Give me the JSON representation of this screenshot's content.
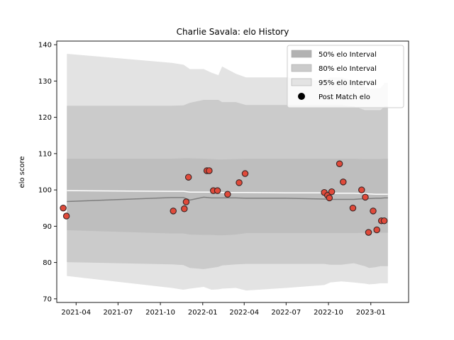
{
  "chart_data": {
    "type": "scatter",
    "title": "Charlie Savala: elo History",
    "xlabel": "",
    "ylabel": "elo score",
    "xlim": [
      "2021-02-18",
      "2023-03-24"
    ],
    "ylim": [
      69,
      141
    ],
    "x_ticks": [
      "2021-04-01",
      "2021-07-01",
      "2021-10-01",
      "2022-01-01",
      "2022-04-01",
      "2022-07-01",
      "2022-10-01",
      "2023-01-01"
    ],
    "x_tick_labels": [
      "2021-04",
      "2021-07",
      "2021-10",
      "2022-01",
      "2022-04",
      "2022-07",
      "2022-10",
      "2023-01"
    ],
    "y_ticks": [
      70,
      80,
      90,
      100,
      110,
      120,
      130,
      140
    ],
    "grid": false,
    "legend_position": "top-right",
    "legend": [
      {
        "label": "50% elo Interval",
        "kind": "patch",
        "color": "#b2b2b2"
      },
      {
        "label": "80% elo Interval",
        "kind": "patch",
        "color": "#cbcbcb"
      },
      {
        "label": "95% elo Interval",
        "kind": "patch",
        "color": "#e3e3e3"
      },
      {
        "label": "Post Match elo",
        "kind": "marker",
        "color": "#000000"
      }
    ],
    "colors": {
      "band_95": "#e3e3e3",
      "band_80": "#cbcbcb",
      "band_50": "#bebebe",
      "median_line": "#ffffff",
      "mean_line": "#7f7f7f",
      "point_fill": "#e04a3a",
      "point_edge": "#3a2525"
    },
    "band_x": [
      "2021-03-12",
      "2021-10-26",
      "2021-11-20",
      "2021-12-04",
      "2022-01-03",
      "2022-01-20",
      "2022-02-04",
      "2022-02-12",
      "2022-03-14",
      "2022-04-05",
      "2022-07-01",
      "2022-09-22",
      "2022-10-05",
      "2022-10-29",
      "2022-11-25",
      "2022-12-19",
      "2022-12-28",
      "2023-01-11",
      "2023-01-22",
      "2023-01-31",
      "2023-02-07"
    ],
    "band_95_upper": [
      137.5,
      135.0,
      134.5,
      133.3,
      133.3,
      132.3,
      131.6,
      134.0,
      132.0,
      131.0,
      131.0,
      130.0,
      131.0,
      131.0,
      130.0,
      128.5,
      127.8,
      128.0,
      128.0,
      129.5,
      129.5
    ],
    "band_95_lower": [
      76.3,
      73.0,
      72.5,
      72.8,
      73.3,
      72.5,
      72.6,
      72.8,
      73.0,
      72.3,
      73.0,
      73.8,
      74.5,
      74.8,
      74.5,
      74.2,
      74.0,
      74.1,
      74.3,
      74.3,
      74.3
    ],
    "band_80_upper": [
      123.2,
      123.2,
      123.3,
      124.0,
      124.8,
      124.8,
      124.8,
      124.2,
      124.2,
      123.4,
      123.4,
      123.4,
      123.4,
      123.4,
      123.0,
      122.0,
      122.0,
      122.0,
      122.0,
      123.0,
      123.0
    ],
    "band_80_lower": [
      80.1,
      79.5,
      79.3,
      78.5,
      78.2,
      78.5,
      78.8,
      79.2,
      79.5,
      79.6,
      79.6,
      79.6,
      79.4,
      79.4,
      79.8,
      79.0,
      78.5,
      78.7,
      79.0,
      79.0,
      79.0
    ],
    "band_50_upper": [
      108.6,
      108.6,
      108.7,
      108.7,
      108.6,
      108.5,
      108.4,
      108.4,
      108.5,
      108.6,
      108.6,
      108.6,
      108.6,
      108.6,
      108.6,
      108.5,
      108.5,
      108.5,
      108.5,
      108.6,
      108.6
    ],
    "band_50_lower": [
      88.9,
      88.0,
      88.0,
      87.7,
      87.6,
      87.6,
      87.5,
      87.5,
      87.7,
      88.1,
      88.1,
      88.1,
      88.1,
      88.1,
      88.1,
      88.2,
      88.1,
      88.1,
      88.2,
      88.2,
      88.2
    ],
    "median_line": [
      99.8,
      99.6,
      99.6,
      99.4,
      99.4,
      99.4,
      99.4,
      99.3,
      99.3,
      99.3,
      99.2,
      99.2,
      99.1,
      99.1,
      99.1,
      99.0,
      98.9,
      98.8,
      98.8,
      98.8,
      98.8
    ],
    "mean_line": [
      96.8,
      97.9,
      97.9,
      97.2,
      98.0,
      97.8,
      97.8,
      97.8,
      97.8,
      97.7,
      97.7,
      97.5,
      97.4,
      97.4,
      97.4,
      97.6,
      97.6,
      97.7,
      97.7,
      97.8,
      97.8
    ],
    "series": [
      {
        "name": "Post Match elo",
        "x": [
          "2021-03-04",
          "2021-03-11",
          "2021-10-29",
          "2021-11-22",
          "2021-11-26",
          "2021-12-01",
          "2022-01-10",
          "2022-01-15",
          "2022-01-24",
          "2022-02-02",
          "2022-02-24",
          "2022-03-21",
          "2022-04-03",
          "2022-09-22",
          "2022-09-29",
          "2022-10-03",
          "2022-10-08",
          "2022-10-25",
          "2022-11-02",
          "2022-11-23",
          "2022-12-12",
          "2022-12-20",
          "2022-12-27",
          "2023-01-06",
          "2023-01-14",
          "2023-01-24",
          "2023-01-30"
        ],
        "y": [
          95.0,
          92.8,
          94.2,
          94.8,
          96.7,
          103.5,
          105.3,
          105.3,
          99.8,
          99.8,
          98.8,
          102.0,
          104.5,
          99.3,
          98.5,
          97.8,
          99.5,
          107.2,
          102.2,
          95.0,
          100.0,
          98.0,
          88.3,
          94.2,
          89.0,
          91.5,
          91.5
        ]
      }
    ]
  }
}
